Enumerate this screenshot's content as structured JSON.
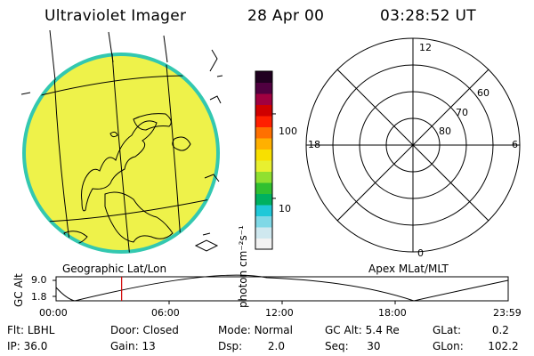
{
  "header": {
    "instrument": "Ultraviolet Imager",
    "date": "28 Apr 00",
    "time": "03:28:52 UT"
  },
  "colorbar": {
    "unit_label": "photon cm⁻²s⁻¹",
    "ticks": [
      {
        "value": 100,
        "label": "100"
      },
      {
        "value": 10,
        "label": "10"
      }
    ],
    "range": [
      2.5,
      320
    ],
    "scale": "log",
    "colors": [
      "#f2f2f2",
      "#cfe8ef",
      "#7fd8e6",
      "#20c8d8",
      "#00b060",
      "#30c030",
      "#90e030",
      "#e8f030",
      "#f8e000",
      "#ffb000",
      "#ff7000",
      "#ff2000",
      "#d00000",
      "#a00040",
      "#500040",
      "#200020"
    ]
  },
  "geo_panel": {
    "label": "Geographic Lat/Lon",
    "fill_color": "#eef24a",
    "edge_color": "#33c8b0"
  },
  "polar_panel": {
    "label": "Apex MLat/MLT",
    "mlt_labels": {
      "top": "12",
      "left": "18",
      "right": "6",
      "bottom": "0"
    },
    "lat_labels": [
      "60",
      "70",
      "80"
    ]
  },
  "altitude_plot": {
    "ylabel": "GC Alt",
    "y_ticks": [
      "9.0",
      "1.8"
    ],
    "x_ticks": [
      "00:00",
      "06:00",
      "12:00",
      "18:00",
      "23:59"
    ],
    "marker_color": "#d00000",
    "marker_time_hours": 3.48
  },
  "params": {
    "row1": [
      {
        "key": "Flt:",
        "value": "LBHL"
      },
      {
        "key": "Door:",
        "value": "Closed"
      },
      {
        "key": "Mode:",
        "value": "Normal"
      },
      {
        "key": "GC Alt:",
        "value": "5.4 Re"
      },
      {
        "key": "GLat:",
        "value": "0.2"
      }
    ],
    "row2": [
      {
        "key": "IP:",
        "value": "36.0"
      },
      {
        "key": "Gain:",
        "value": "13"
      },
      {
        "key": "Dsp:",
        "value": "2.0"
      },
      {
        "key": "Seq:",
        "value": "30"
      },
      {
        "key": "GLon:",
        "value": "102.2"
      }
    ]
  }
}
